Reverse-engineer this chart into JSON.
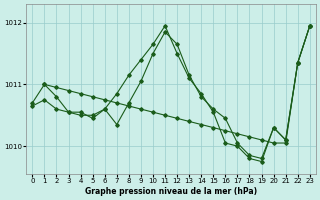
{
  "xlabel": "Graphe pression niveau de la mer (hPa)",
  "ylim": [
    1009.55,
    1012.3
  ],
  "xlim": [
    -0.5,
    23.5
  ],
  "yticks": [
    1010,
    1011,
    1012
  ],
  "xticks": [
    0,
    1,
    2,
    3,
    4,
    5,
    6,
    7,
    8,
    9,
    10,
    11,
    12,
    13,
    14,
    15,
    16,
    17,
    18,
    19,
    20,
    21,
    22,
    23
  ],
  "bg_color": "#cceee8",
  "grid_color": "#99cccc",
  "line_color": "#1a5c1a",
  "series": [
    {
      "x": [
        0,
        1,
        2,
        3,
        4,
        5,
        6,
        7,
        8,
        9,
        10,
        11,
        12,
        13,
        14,
        15,
        16,
        17,
        18,
        19,
        20,
        21,
        22,
        23
      ],
      "y": [
        1010.7,
        1011.0,
        1010.8,
        1010.55,
        1010.5,
        1010.5,
        1010.6,
        1010.85,
        1011.15,
        1011.4,
        1011.65,
        1011.95,
        1011.5,
        1011.1,
        1010.85,
        1010.55,
        1010.05,
        1010.0,
        1009.8,
        1009.75,
        1010.3,
        1010.1,
        1011.35,
        1011.95
      ]
    },
    {
      "x": [
        1,
        2,
        3,
        4,
        5,
        6,
        7,
        8,
        9,
        10,
        11,
        12,
        13,
        14,
        15,
        16,
        17,
        18,
        19,
        20,
        21,
        22,
        23
      ],
      "y": [
        1011.0,
        1010.95,
        1010.9,
        1010.85,
        1010.8,
        1010.75,
        1010.7,
        1010.65,
        1010.6,
        1010.55,
        1010.5,
        1010.45,
        1010.4,
        1010.35,
        1010.3,
        1010.25,
        1010.2,
        1010.15,
        1010.1,
        1010.05,
        1010.05,
        1011.35,
        1011.95
      ]
    },
    {
      "x": [
        0,
        1,
        2,
        3,
        4,
        5,
        6,
        7,
        8,
        9,
        10,
        11,
        12,
        13,
        14,
        15,
        16,
        17,
        18,
        19,
        20,
        21,
        22,
        23
      ],
      "y": [
        1010.65,
        1010.75,
        1010.6,
        1010.55,
        1010.55,
        1010.45,
        1010.6,
        1010.35,
        1010.7,
        1011.05,
        1011.5,
        1011.85,
        1011.65,
        1011.15,
        1010.8,
        1010.6,
        1010.45,
        1010.05,
        1009.85,
        1009.8,
        1010.3,
        1010.1,
        1011.35,
        1011.95
      ]
    }
  ]
}
